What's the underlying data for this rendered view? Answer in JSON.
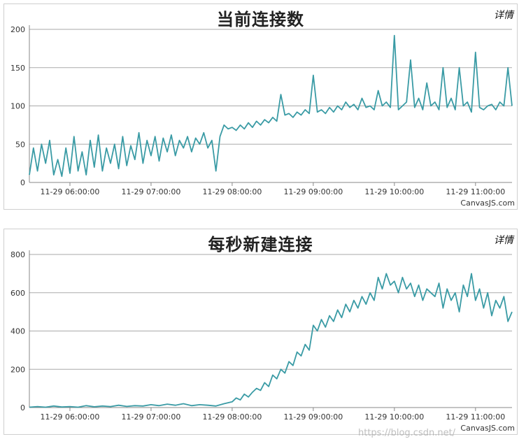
{
  "watermark": "https://blog.csdn.net/",
  "chart_data": [
    {
      "type": "line",
      "title": "当前连接数",
      "details_label": "详情",
      "credit": "CanvasJS.com",
      "line_color": "#3a9ba5",
      "grid_color": "#aaaaaa",
      "x_range_hours": [
        5.5,
        11.45
      ],
      "ylim": [
        0,
        200
      ],
      "y_ticks": [
        0,
        50,
        100,
        150,
        200
      ],
      "x_ticks": [
        {
          "label": "11-29 06:00:00",
          "hour": 6
        },
        {
          "label": "11-29 07:00:00",
          "hour": 7
        },
        {
          "label": "11-29 08:00:00",
          "hour": 8
        },
        {
          "label": "11-29 09:00:00",
          "hour": 9
        },
        {
          "label": "11-29 10:00:00",
          "hour": 10
        },
        {
          "label": "11-29 11:00:00",
          "hour": 11
        }
      ],
      "series": [
        {
          "x_hours": [
            5.5,
            5.55,
            5.6,
            5.65,
            5.7,
            5.75,
            5.8,
            5.85,
            5.9,
            5.95,
            6.0,
            6.05,
            6.1,
            6.15,
            6.2,
            6.25,
            6.3,
            6.35,
            6.4,
            6.45,
            6.5,
            6.55,
            6.6,
            6.65,
            6.7,
            6.75,
            6.8,
            6.85,
            6.9,
            6.95,
            7.0,
            7.05,
            7.1,
            7.15,
            7.2,
            7.25,
            7.3,
            7.35,
            7.4,
            7.45,
            7.5,
            7.55,
            7.6,
            7.65,
            7.7,
            7.75,
            7.8,
            7.85,
            7.9,
            7.95,
            8.0,
            8.05,
            8.1,
            8.15,
            8.2,
            8.25,
            8.3,
            8.35,
            8.4,
            8.45,
            8.5,
            8.55,
            8.6,
            8.65,
            8.7,
            8.75,
            8.8,
            8.85,
            8.9,
            8.95,
            9.0,
            9.05,
            9.1,
            9.15,
            9.2,
            9.25,
            9.3,
            9.35,
            9.4,
            9.45,
            9.5,
            9.55,
            9.6,
            9.65,
            9.7,
            9.75,
            9.8,
            9.85,
            9.9,
            9.95,
            10.0,
            10.05,
            10.1,
            10.15,
            10.2,
            10.25,
            10.3,
            10.35,
            10.4,
            10.45,
            10.5,
            10.55,
            10.6,
            10.65,
            10.7,
            10.75,
            10.8,
            10.85,
            10.9,
            10.95,
            11.0,
            11.05,
            11.1,
            11.15,
            11.2,
            11.25,
            11.3,
            11.35,
            11.4,
            11.45
          ],
          "values": [
            10,
            45,
            15,
            50,
            25,
            55,
            10,
            30,
            8,
            45,
            12,
            60,
            15,
            40,
            10,
            55,
            20,
            62,
            15,
            45,
            25,
            50,
            18,
            60,
            22,
            48,
            30,
            65,
            25,
            55,
            35,
            60,
            28,
            58,
            40,
            62,
            35,
            55,
            45,
            60,
            40,
            58,
            50,
            65,
            45,
            55,
            15,
            60,
            75,
            70,
            72,
            68,
            75,
            70,
            78,
            72,
            80,
            75,
            82,
            78,
            85,
            80,
            115,
            88,
            90,
            85,
            92,
            88,
            95,
            90,
            140,
            92,
            95,
            90,
            98,
            92,
            100,
            95,
            105,
            98,
            102,
            95,
            110,
            98,
            100,
            95,
            120,
            100,
            105,
            98,
            192,
            95,
            100,
            105,
            160,
            98,
            110,
            95,
            130,
            100,
            105,
            95,
            150,
            98,
            110,
            95,
            150,
            100,
            105,
            92,
            170,
            98,
            95,
            100,
            102,
            95,
            105,
            100,
            150,
            100
          ]
        }
      ]
    },
    {
      "type": "line",
      "title": "每秒新建连接",
      "details_label": "详情",
      "credit": "CanvasJS.com",
      "line_color": "#3a9ba5",
      "grid_color": "#aaaaaa",
      "x_range_hours": [
        5.5,
        11.45
      ],
      "ylim": [
        0,
        800
      ],
      "y_ticks": [
        0,
        200,
        400,
        600,
        800
      ],
      "x_ticks": [
        {
          "label": "11-29 06:00:00",
          "hour": 6
        },
        {
          "label": "11-29 07:00:00",
          "hour": 7
        },
        {
          "label": "11-29 08:00:00",
          "hour": 8
        },
        {
          "label": "11-29 09:00:00",
          "hour": 9
        },
        {
          "label": "11-29 10:00:00",
          "hour": 10
        },
        {
          "label": "11-29 11:00:00",
          "hour": 11
        }
      ],
      "series": [
        {
          "x_hours": [
            5.5,
            5.6,
            5.7,
            5.8,
            5.9,
            6.0,
            6.1,
            6.2,
            6.3,
            6.4,
            6.5,
            6.6,
            6.7,
            6.8,
            6.9,
            7.0,
            7.1,
            7.2,
            7.3,
            7.4,
            7.5,
            7.6,
            7.7,
            7.8,
            7.9,
            8.0,
            8.05,
            8.1,
            8.15,
            8.2,
            8.25,
            8.3,
            8.35,
            8.4,
            8.45,
            8.5,
            8.55,
            8.6,
            8.65,
            8.7,
            8.75,
            8.8,
            8.85,
            8.9,
            8.95,
            9.0,
            9.05,
            9.1,
            9.15,
            9.2,
            9.25,
            9.3,
            9.35,
            9.4,
            9.45,
            9.5,
            9.55,
            9.6,
            9.65,
            9.7,
            9.75,
            9.8,
            9.85,
            9.9,
            9.95,
            10.0,
            10.05,
            10.1,
            10.15,
            10.2,
            10.25,
            10.3,
            10.35,
            10.4,
            10.45,
            10.5,
            10.55,
            10.6,
            10.65,
            10.7,
            10.75,
            10.8,
            10.85,
            10.9,
            10.95,
            11.0,
            11.05,
            11.1,
            11.15,
            11.2,
            11.25,
            11.3,
            11.35,
            11.4,
            11.45
          ],
          "values": [
            2,
            5,
            2,
            8,
            3,
            5,
            2,
            10,
            4,
            8,
            5,
            12,
            6,
            10,
            8,
            15,
            10,
            18,
            12,
            20,
            10,
            15,
            12,
            8,
            20,
            30,
            50,
            40,
            70,
            55,
            80,
            100,
            90,
            130,
            110,
            170,
            150,
            200,
            180,
            240,
            220,
            290,
            270,
            330,
            300,
            430,
            400,
            460,
            420,
            480,
            450,
            510,
            470,
            540,
            500,
            560,
            520,
            580,
            540,
            600,
            560,
            680,
            620,
            700,
            640,
            660,
            600,
            680,
            620,
            650,
            580,
            640,
            560,
            620,
            600,
            580,
            650,
            520,
            620,
            560,
            600,
            500,
            640,
            580,
            700,
            560,
            620,
            520,
            600,
            480,
            560,
            520,
            580,
            450,
            500
          ]
        }
      ]
    }
  ]
}
